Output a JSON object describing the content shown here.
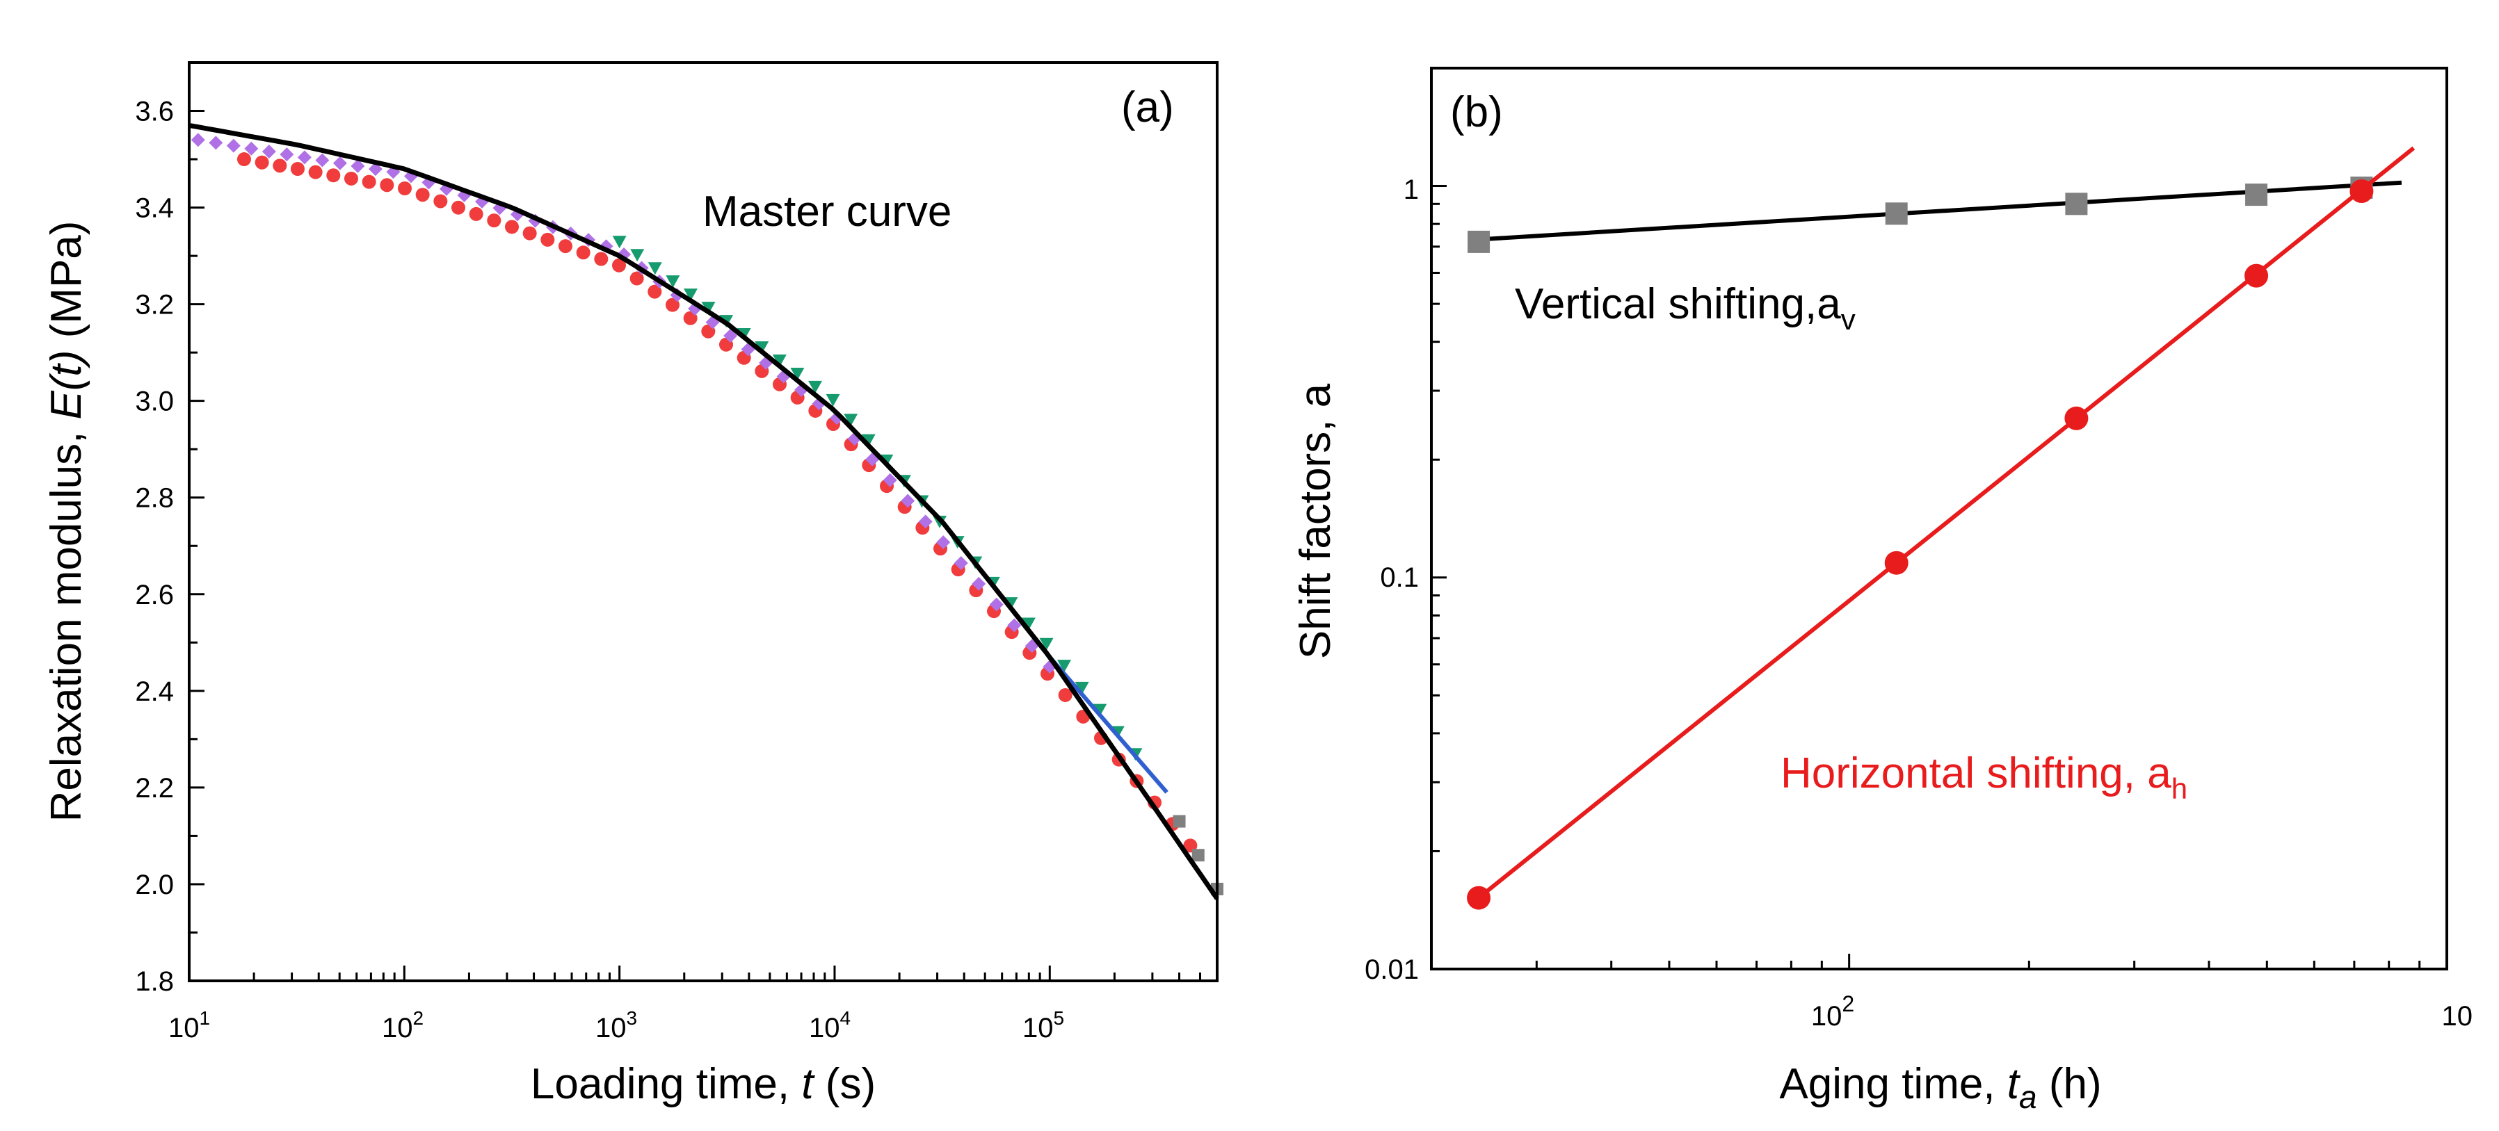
{
  "chart_data": [
    {
      "panel_label": "(a)",
      "type": "scatter",
      "xscale": "log",
      "xlim": [
        10,
        600000
      ],
      "ylim": [
        1.8,
        3.7
      ],
      "xlabel_prefix": "Loading time, ",
      "xlabel_var": "t",
      "xlabel_suffix": " (s)",
      "ylabel_prefix": "Relaxation modulus, ",
      "ylabel_var": "E(t)",
      "ylabel_suffix": " (MPa)",
      "xtick_labels": [
        {
          "base": "10",
          "exp": "1"
        },
        {
          "base": "10",
          "exp": "2"
        },
        {
          "base": "10",
          "exp": "3"
        },
        {
          "base": "10",
          "exp": "4"
        },
        {
          "base": "10",
          "exp": "5"
        }
      ],
      "ytick_labels": [
        "1.8",
        "2.0",
        "2.2",
        "2.4",
        "2.6",
        "2.8",
        "3.0",
        "3.2",
        "3.4",
        "3.6"
      ],
      "annotation": "Master curve",
      "master_curve": {
        "color": "#000000",
        "x": [
          10,
          31.6,
          100,
          316,
          1000,
          3162,
          10000,
          31623,
          100000,
          316228,
          600000
        ],
        "y": [
          3.57,
          3.53,
          3.48,
          3.4,
          3.3,
          3.16,
          2.98,
          2.75,
          2.47,
          2.15,
          1.97
        ]
      },
      "series": [
        {
          "name": "red circles",
          "marker": "circle",
          "color": "#f03c3c",
          "x": [
            18,
            100,
            1000,
            10000,
            100000,
            450000
          ],
          "y": [
            3.5,
            3.44,
            3.28,
            2.95,
            2.43,
            2.08
          ]
        },
        {
          "name": "purple diamonds",
          "marker": "diamond",
          "color": "#b070e6",
          "x": [
            11,
            100,
            1000,
            10000,
            100000
          ],
          "y": [
            3.54,
            3.47,
            3.31,
            2.97,
            2.45
          ]
        },
        {
          "name": "green triangles",
          "marker": "triangle-down",
          "color": "#169b6e",
          "x": [
            1000,
            10000,
            100000,
            250000
          ],
          "y": [
            3.33,
            3.0,
            2.49,
            2.27
          ]
        },
        {
          "name": "blue line",
          "marker": "none",
          "color": "#3060d0",
          "x": [
            100000,
            350000
          ],
          "y": [
            2.47,
            2.19
          ]
        },
        {
          "name": "gray squares",
          "marker": "square",
          "color": "#808080",
          "x": [
            400000,
            600000
          ],
          "y": [
            2.13,
            1.99
          ]
        }
      ]
    },
    {
      "panel_label": "(b)",
      "type": "scatter",
      "xscale": "log",
      "yscale": "log",
      "xlim": [
        20,
        1000
      ],
      "ylim": [
        0.01,
        2
      ],
      "xlabel_prefix": "Aging time, ",
      "xlabel_var": "t",
      "xlabel_sub": "a",
      "xlabel_suffix": " (h)",
      "ylabel": "Shift factors, a",
      "xtick_labels": [
        {
          "base": "10",
          "exp": "2"
        },
        {
          "base": "10",
          "exp": ""
        }
      ],
      "ytick_labels": [
        "0.01",
        "0.1",
        "1"
      ],
      "series": [
        {
          "name": "Vertical shifting",
          "label_prefix": "Vertical shifting,a",
          "label_sub": "v",
          "marker": "square",
          "color": "#808080",
          "fit_color": "#000000",
          "x": [
            24,
            120,
            240,
            480,
            720
          ],
          "y": [
            0.72,
            0.85,
            0.9,
            0.95,
            0.99
          ],
          "fit_x": [
            24,
            840
          ],
          "fit_y": [
            0.73,
            1.02
          ]
        },
        {
          "name": "Horizontal shifting",
          "label_prefix": "Horizontal shifting, a",
          "label_sub": "h",
          "marker": "circle",
          "color": "#e81c1c",
          "fit_color": "#e81c1c",
          "x": [
            24,
            120,
            240,
            480,
            720
          ],
          "y": [
            0.0152,
            0.109,
            0.255,
            0.59,
            0.97
          ],
          "fit_x": [
            24,
            880
          ],
          "fit_y": [
            0.0152,
            1.25
          ]
        }
      ]
    }
  ]
}
